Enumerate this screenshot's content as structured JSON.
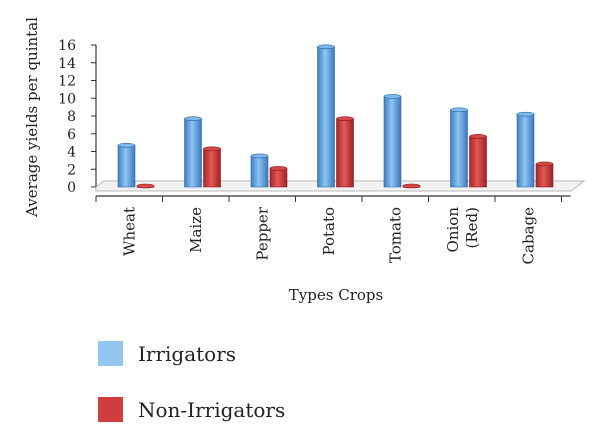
{
  "chart_data": {
    "type": "bar",
    "title": "",
    "xlabel": "Types Crops",
    "ylabel": "Average yields per quintal",
    "ylim": [
      0,
      16
    ],
    "yticks": [
      0,
      2,
      4,
      6,
      8,
      10,
      12,
      14,
      16
    ],
    "grid": false,
    "legend_position": "bottom-left",
    "categories": [
      [
        "Wheat"
      ],
      [
        "Maize"
      ],
      [
        "Pepper"
      ],
      [
        "Potato"
      ],
      [
        "Tomato"
      ],
      [
        "Onion",
        "(Red)"
      ],
      [
        "Cabage"
      ]
    ],
    "series": [
      {
        "name": "Irrigators",
        "color": "#6aaee6",
        "values": [
          4.7,
          7.7,
          3.5,
          15.8,
          10.2,
          8.7,
          8.2
        ]
      },
      {
        "name": "Non-Irrigators",
        "color": "#d13c3c",
        "values": [
          0.0,
          4.3,
          2.1,
          7.7,
          0.0,
          5.7,
          2.6
        ]
      }
    ]
  }
}
